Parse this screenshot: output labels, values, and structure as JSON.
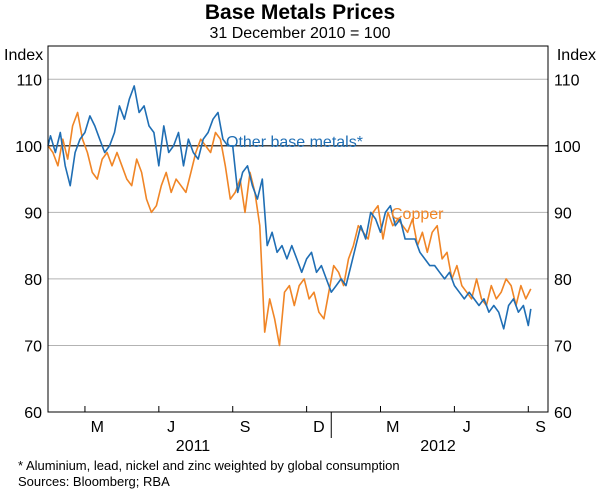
{
  "chart_data": {
    "type": "line",
    "title": "Base Metals Prices",
    "subtitle": "31 December 2010 = 100",
    "ylabel_left": "Index",
    "ylabel_right": "Index",
    "ylim": [
      60,
      115
    ],
    "yticks": [
      60,
      70,
      80,
      90,
      100,
      110
    ],
    "ytick_labels": [
      "60",
      "70",
      "80",
      "90",
      "100",
      "110"
    ],
    "reference_line": 100,
    "months": [
      "M",
      "J",
      "S",
      "D",
      "M",
      "J",
      "S"
    ],
    "years": [
      "2011",
      "2012"
    ],
    "x_unit": "months since 1 January 2011",
    "xlim": [
      0,
      20.3
    ],
    "series": [
      {
        "name": "Other base metals*",
        "color": "#1f6eb4",
        "x": [
          0,
          0.1,
          0.3,
          0.5,
          0.7,
          0.9,
          1.1,
          1.3,
          1.5,
          1.7,
          1.9,
          2.1,
          2.3,
          2.5,
          2.7,
          2.9,
          3.1,
          3.3,
          3.5,
          3.7,
          3.9,
          4.1,
          4.3,
          4.5,
          4.7,
          4.9,
          5.1,
          5.3,
          5.5,
          5.7,
          5.9,
          6.1,
          6.3,
          6.5,
          6.7,
          6.9,
          7.1,
          7.3,
          7.5,
          7.7,
          7.9,
          8.1,
          8.3,
          8.5,
          8.7,
          8.9,
          9.1,
          9.3,
          9.5,
          9.7,
          9.9,
          10.1,
          10.3,
          10.5,
          10.7,
          10.9,
          11.1,
          11.3,
          11.5,
          11.7,
          11.9,
          12.1,
          12.3,
          12.5,
          12.7,
          12.9,
          13.1,
          13.3,
          13.5,
          13.7,
          13.9,
          14.1,
          14.3,
          14.5,
          14.7,
          14.9,
          15.1,
          15.3,
          15.5,
          15.7,
          15.9,
          16.1,
          16.3,
          16.5,
          16.7,
          16.9,
          17.1,
          17.3,
          17.5,
          17.7,
          17.9,
          18.1,
          18.3,
          18.5,
          18.7,
          18.9,
          19.1,
          19.3,
          19.5,
          19.6
        ],
        "values": [
          100,
          101.5,
          99,
          102,
          97,
          94,
          99,
          101,
          102,
          104.5,
          103,
          101,
          99,
          100,
          102,
          106,
          104,
          107,
          109,
          105,
          106,
          103,
          102,
          97,
          103,
          99,
          100,
          102,
          97,
          101,
          99,
          98,
          101,
          102,
          104,
          105,
          101,
          100,
          100,
          93,
          96,
          97,
          94,
          92,
          95,
          85,
          87,
          84,
          85,
          83,
          85,
          83,
          81,
          83,
          84,
          81,
          82,
          80,
          78,
          79,
          80,
          79,
          82,
          85,
          88,
          86,
          90,
          89,
          87,
          90,
          91,
          88,
          89,
          86,
          86,
          86,
          84,
          83,
          82,
          82,
          81,
          80,
          81,
          79,
          78,
          77,
          78,
          77,
          76,
          77,
          75,
          76,
          75,
          72.5,
          76,
          77,
          75,
          76,
          73,
          75.5
        ]
      },
      {
        "name": "Copper",
        "color": "#f08526",
        "x": [
          0,
          0.2,
          0.4,
          0.6,
          0.8,
          1.0,
          1.2,
          1.4,
          1.6,
          1.8,
          2.0,
          2.2,
          2.4,
          2.6,
          2.8,
          3.0,
          3.2,
          3.4,
          3.6,
          3.8,
          4.0,
          4.2,
          4.4,
          4.6,
          4.8,
          5.0,
          5.2,
          5.4,
          5.6,
          5.8,
          6.0,
          6.2,
          6.4,
          6.6,
          6.8,
          7.0,
          7.2,
          7.4,
          7.6,
          7.8,
          8.0,
          8.2,
          8.4,
          8.6,
          8.8,
          9.0,
          9.2,
          9.4,
          9.6,
          9.8,
          10.0,
          10.2,
          10.4,
          10.6,
          10.8,
          11.0,
          11.2,
          11.4,
          11.6,
          11.8,
          12.0,
          12.2,
          12.4,
          12.6,
          12.8,
          13.0,
          13.2,
          13.4,
          13.6,
          13.8,
          14.0,
          14.2,
          14.4,
          14.6,
          14.8,
          15.0,
          15.2,
          15.4,
          15.6,
          15.8,
          16.0,
          16.2,
          16.4,
          16.6,
          16.8,
          17.0,
          17.2,
          17.4,
          17.6,
          17.8,
          18.0,
          18.2,
          18.4,
          18.6,
          18.8,
          19.0,
          19.2,
          19.4,
          19.6
        ],
        "values": [
          100,
          99,
          97,
          101,
          98,
          103,
          105,
          101,
          99,
          96,
          95,
          98,
          99,
          97,
          99,
          97,
          95,
          94,
          98,
          96,
          92,
          90,
          91,
          94,
          96,
          93,
          95,
          94,
          93,
          96,
          99,
          101,
          100,
          99,
          102,
          101,
          97,
          92,
          93,
          95,
          90,
          96,
          93,
          88,
          72,
          77,
          74,
          70,
          78,
          79,
          76,
          79,
          80,
          77,
          78,
          75,
          74,
          78,
          82,
          81,
          79,
          83,
          85,
          88,
          87,
          86,
          90,
          91,
          86,
          90,
          88,
          89,
          88,
          87,
          89,
          85,
          87,
          84,
          87,
          88,
          83,
          84,
          80,
          82,
          79,
          78,
          77,
          80,
          77,
          76,
          79,
          77,
          78,
          80,
          79,
          76,
          79,
          77,
          78.5
        ]
      }
    ],
    "footnote": "*     Aluminium, lead, nickel and zinc weighted by global consumption",
    "sources": "Sources: Bloomberg; RBA"
  }
}
